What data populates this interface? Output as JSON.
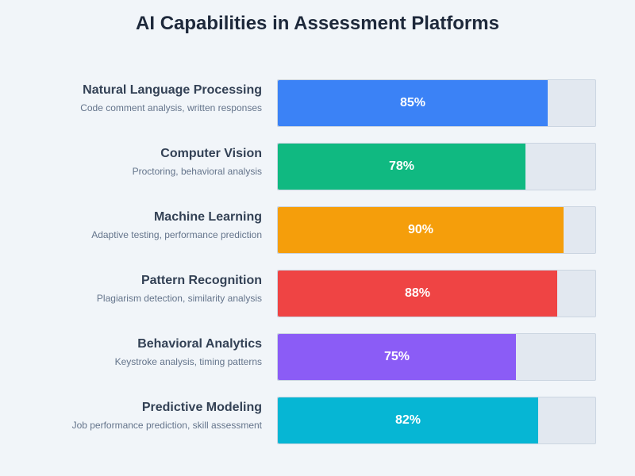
{
  "chart_data": {
    "type": "bar",
    "orientation": "horizontal",
    "title": "AI Capabilities in Assessment Platforms",
    "xlim": [
      0,
      100
    ],
    "grid": false,
    "legend": "none",
    "bars": [
      {
        "label": "Natural Language Processing",
        "description": "Code comment analysis, written responses",
        "value": 85,
        "value_label": "85%",
        "color": "#3b82f6"
      },
      {
        "label": "Computer Vision",
        "description": "Proctoring, behavioral analysis",
        "value": 78,
        "value_label": "78%",
        "color": "#10b981"
      },
      {
        "label": "Machine Learning",
        "description": "Adaptive testing, performance prediction",
        "value": 90,
        "value_label": "90%",
        "color": "#f59e0b"
      },
      {
        "label": "Pattern Recognition",
        "description": "Plagiarism detection, similarity analysis",
        "value": 88,
        "value_label": "88%",
        "color": "#ef4444"
      },
      {
        "label": "Behavioral Analytics",
        "description": "Keystroke analysis, timing patterns",
        "value": 75,
        "value_label": "75%",
        "color": "#8b5cf6"
      },
      {
        "label": "Predictive Modeling",
        "description": "Job performance prediction, skill assessment",
        "value": 82,
        "value_label": "82%",
        "color": "#06b6d4"
      }
    ]
  }
}
